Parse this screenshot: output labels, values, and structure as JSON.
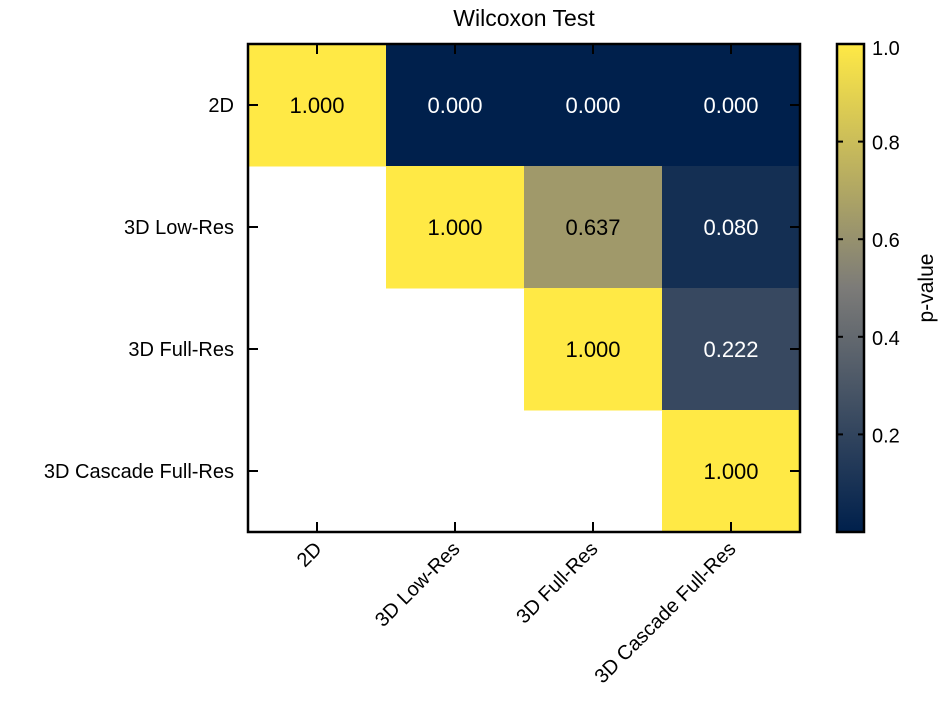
{
  "chart_data": {
    "type": "heatmap",
    "title": "Wilcoxon Test",
    "rows": [
      "2D",
      "3D Low-Res",
      "3D Full-Res",
      "3D Cascade Full-Res"
    ],
    "columns": [
      "2D",
      "3D Low-Res",
      "3D Full-Res",
      "3D Cascade Full-Res"
    ],
    "cells": [
      {
        "row": 0,
        "col": 0,
        "value": 1.0,
        "label": "1.000"
      },
      {
        "row": 0,
        "col": 1,
        "value": 0.0,
        "label": "0.000"
      },
      {
        "row": 0,
        "col": 2,
        "value": 0.0,
        "label": "0.000"
      },
      {
        "row": 0,
        "col": 3,
        "value": 0.0,
        "label": "0.000"
      },
      {
        "row": 1,
        "col": 1,
        "value": 1.0,
        "label": "1.000"
      },
      {
        "row": 1,
        "col": 2,
        "value": 0.637,
        "label": "0.637"
      },
      {
        "row": 1,
        "col": 3,
        "value": 0.08,
        "label": "0.080"
      },
      {
        "row": 2,
        "col": 2,
        "value": 1.0,
        "label": "1.000"
      },
      {
        "row": 2,
        "col": 3,
        "value": 0.222,
        "label": "0.222"
      },
      {
        "row": 3,
        "col": 3,
        "value": 1.0,
        "label": "1.000"
      }
    ],
    "colorbar": {
      "label": "p-value",
      "range": [
        0.0,
        1.0
      ],
      "ticks": [
        0.2,
        0.4,
        0.6,
        0.8,
        1.0
      ],
      "tick_labels": [
        "0.2",
        "0.4",
        "0.6",
        "0.8",
        "1.0"
      ],
      "colormap": "cividis",
      "low_color": "#00204c",
      "mid_color": "#7c7b78",
      "high_color": "#ffe945"
    }
  }
}
